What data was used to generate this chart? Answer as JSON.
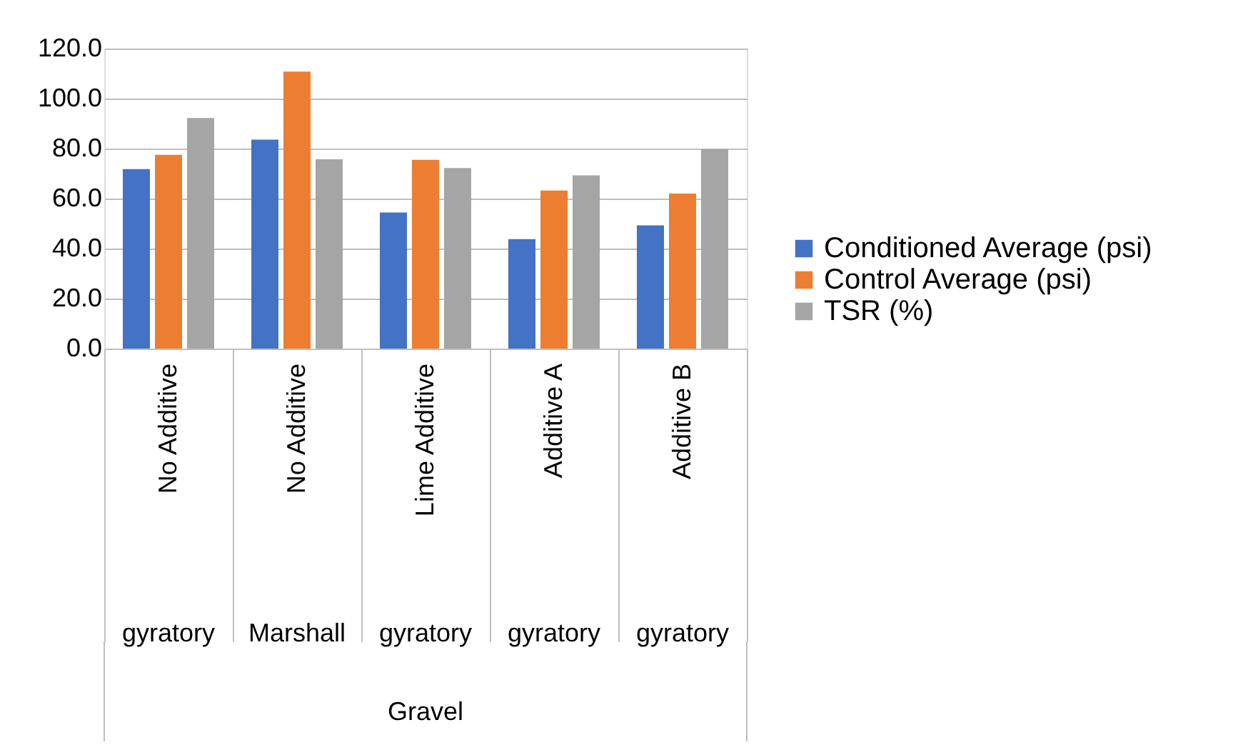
{
  "chart_data": {
    "type": "bar",
    "categories": [
      "No Additive",
      "No Additive",
      "Lime Additive",
      "Additive A",
      "Additive B"
    ],
    "series": [
      {
        "name": "Conditioned Average (psi)",
        "color": "#4472c4",
        "values": [
          71.8,
          83.6,
          54.4,
          43.8,
          49.3
        ]
      },
      {
        "name": "Control Average (psi)",
        "color": "#ed7d31",
        "values": [
          77.5,
          110.8,
          75.5,
          63.2,
          62.0
        ]
      },
      {
        "name": "TSR (%)",
        "color": "#a5a5a5",
        "values": [
          92.2,
          75.7,
          72.2,
          69.3,
          79.8
        ]
      }
    ],
    "annotations": [
      "gyratory",
      "Marshall",
      "gyratory",
      "gyratory",
      "gyratory",
      "Gravel"
    ],
    "ylim": [
      0,
      120
    ],
    "yticks": [
      {
        "value": 0,
        "label": "0.0"
      },
      {
        "value": 20,
        "label": "20.0"
      },
      {
        "value": 40,
        "label": "40.0"
      },
      {
        "value": 60,
        "label": "60.0"
      },
      {
        "value": 80,
        "label": "80.0"
      },
      {
        "value": 100,
        "label": "100.0"
      },
      {
        "value": 120,
        "label": "120.0"
      }
    ],
    "grid": "y",
    "legend": "right"
  }
}
